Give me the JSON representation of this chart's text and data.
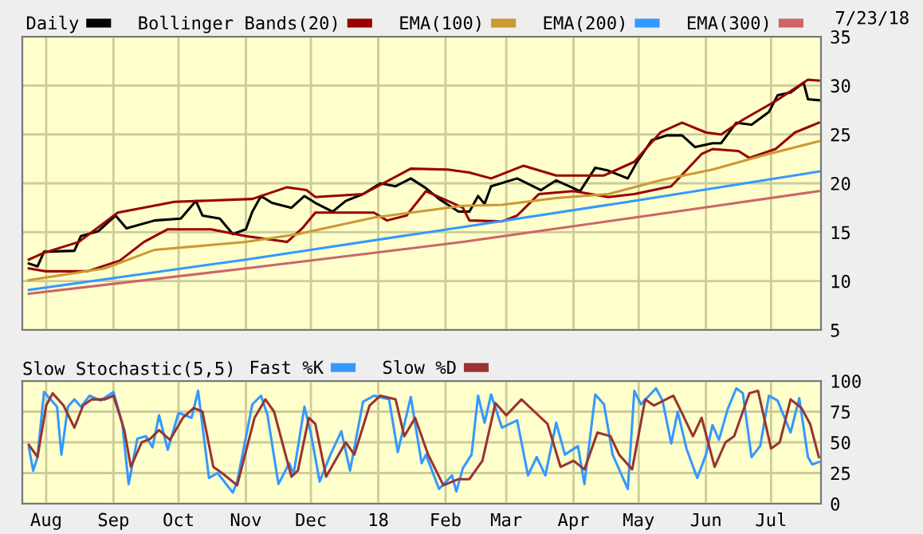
{
  "chart_data": [
    {
      "type": "line",
      "legend": "top",
      "grid": true,
      "tick_labels": "y",
      "annotations": [
        "7/23/18"
      ],
      "xlim": [
        "2017-07-21",
        "2018-07-24"
      ],
      "ylim": [
        5,
        35
      ],
      "yticks": [
        5,
        10,
        15,
        20,
        25,
        30,
        35
      ],
      "xticks": [
        {
          "value": "2017-08-01",
          "label": null
        },
        {
          "value": "2017-09-01",
          "label": null
        },
        {
          "value": "2017-10-01",
          "label": null
        },
        {
          "value": "2017-11-01",
          "label": null
        },
        {
          "value": "2017-12-01",
          "label": null
        },
        {
          "value": "2018-01-01",
          "label": null
        },
        {
          "value": "2018-02-01",
          "label": null
        },
        {
          "value": "2018-03-01",
          "label": null
        },
        {
          "value": "2018-04-01",
          "label": null
        },
        {
          "value": "2018-05-01",
          "label": null
        },
        {
          "value": "2018-06-01",
          "label": null
        },
        {
          "value": "2018-07-01",
          "label": null
        }
      ],
      "series": [
        {
          "name": "Daily",
          "color": "#000000",
          "x": [
            "2017-07-24",
            "2017-07-28",
            "2017-07-31",
            "2017-08-14",
            "2017-08-17",
            "2017-08-25",
            "2017-09-02",
            "2017-09-07",
            "2017-09-20",
            "2017-10-02",
            "2017-10-09",
            "2017-10-12",
            "2017-10-20",
            "2017-10-26",
            "2017-11-01",
            "2017-11-04",
            "2017-11-08",
            "2017-11-13",
            "2017-11-22",
            "2017-11-28",
            "2017-12-03",
            "2017-12-11",
            "2017-12-17",
            "2017-12-25",
            "2018-01-02",
            "2018-01-09",
            "2018-01-16",
            "2018-01-23",
            "2018-01-29",
            "2018-02-07",
            "2018-02-12",
            "2018-02-16",
            "2018-02-19",
            "2018-02-22",
            "2018-03-06",
            "2018-03-17",
            "2018-03-24",
            "2018-04-04",
            "2018-04-11",
            "2018-04-17",
            "2018-04-26",
            "2018-04-30",
            "2018-05-07",
            "2018-05-14",
            "2018-05-21",
            "2018-05-27",
            "2018-06-04",
            "2018-06-08",
            "2018-06-15",
            "2018-06-22",
            "2018-06-30",
            "2018-07-04",
            "2018-07-10",
            "2018-07-16",
            "2018-07-18",
            "2018-07-23"
          ],
          "values": [
            11.8,
            11.5,
            13.0,
            13.1,
            14.6,
            15.1,
            16.7,
            15.4,
            16.2,
            16.4,
            18.2,
            16.7,
            16.4,
            14.8,
            15.3,
            17.1,
            18.7,
            18.0,
            17.5,
            18.7,
            18.0,
            17.1,
            18.2,
            18.9,
            20.0,
            19.7,
            20.5,
            19.5,
            18.4,
            17.1,
            17.1,
            18.7,
            17.9,
            19.7,
            20.5,
            19.3,
            20.3,
            19.2,
            21.6,
            21.3,
            20.5,
            22.1,
            24.4,
            24.9,
            24.9,
            23.7,
            24.1,
            24.1,
            26.2,
            26.0,
            27.3,
            29.0,
            29.3,
            30.3,
            28.6,
            28.5
          ]
        },
        {
          "name": "Bollinger Bands(20)",
          "color": "#990000",
          "x": [
            "2017-07-24",
            "2017-07-31",
            "2017-08-16",
            "2017-09-03",
            "2017-09-29",
            "2017-11-04",
            "2017-11-20",
            "2017-11-29",
            "2017-12-03",
            "2017-12-25",
            "2018-01-16",
            "2018-02-02",
            "2018-02-12",
            "2018-02-22",
            "2018-03-09",
            "2018-03-24",
            "2018-04-15",
            "2018-04-29",
            "2018-05-11",
            "2018-05-21",
            "2018-06-01",
            "2018-06-08",
            "2018-06-18",
            "2018-07-03",
            "2018-07-18",
            "2018-07-23"
          ],
          "values": [
            12.2,
            12.9,
            14.0,
            17.0,
            18.1,
            18.4,
            19.6,
            19.3,
            18.6,
            18.9,
            21.5,
            21.4,
            21.1,
            20.5,
            21.8,
            20.8,
            20.8,
            22.2,
            25.2,
            26.2,
            25.2,
            25.0,
            26.5,
            28.4,
            30.6,
            30.5
          ]
        },
        {
          "color": "#990000",
          "x": [
            "2017-07-24",
            "2017-08-01",
            "2017-08-20",
            "2017-09-04",
            "2017-09-15",
            "2017-09-26",
            "2017-10-16",
            "2017-11-01",
            "2017-11-20",
            "2017-11-27",
            "2017-12-03",
            "2017-12-30",
            "2018-01-05",
            "2018-01-14",
            "2018-01-23",
            "2018-02-09",
            "2018-02-12",
            "2018-02-27",
            "2018-03-06",
            "2018-03-16",
            "2018-04-01",
            "2018-04-17",
            "2018-04-29",
            "2018-05-16",
            "2018-05-30",
            "2018-06-04",
            "2018-06-16",
            "2018-06-21",
            "2018-07-03",
            "2018-07-12",
            "2018-07-23"
          ],
          "values": [
            11.3,
            11.0,
            11.0,
            12.1,
            14.0,
            15.3,
            15.3,
            14.6,
            14.0,
            15.4,
            17.0,
            17.0,
            16.2,
            16.7,
            19.2,
            17.5,
            16.2,
            16.1,
            16.7,
            18.9,
            19.2,
            18.6,
            18.9,
            19.7,
            23.0,
            23.5,
            23.3,
            22.6,
            23.5,
            25.2,
            26.2
          ]
        },
        {
          "name": "EMA(100)",
          "color": "#cc9933",
          "x": [
            "2017-07-24",
            "2017-08-28",
            "2017-09-20",
            "2017-11-01",
            "2017-11-25",
            "2017-12-30",
            "2018-02-09",
            "2018-02-27",
            "2018-03-24",
            "2018-04-17",
            "2018-05-11",
            "2018-06-04",
            "2018-06-28",
            "2018-07-23"
          ],
          "values": [
            10.1,
            11.3,
            13.2,
            14.0,
            14.8,
            16.5,
            17.7,
            17.8,
            18.5,
            18.9,
            20.3,
            21.4,
            22.9,
            24.3
          ]
        },
        {
          "name": "EMA(200)",
          "color": "#3399ff",
          "x": [
            "2017-07-24",
            "2017-11-01",
            "2018-02-02",
            "2018-04-29",
            "2018-07-23"
          ],
          "values": [
            9.1,
            12.2,
            15.3,
            18.2,
            21.2
          ]
        },
        {
          "name": "EMA(300)",
          "color": "#cc6666",
          "x": [
            "2017-07-24",
            "2017-11-01",
            "2018-02-09",
            "2018-04-29",
            "2018-07-23"
          ],
          "values": [
            8.7,
            11.3,
            14.0,
            16.5,
            19.2
          ]
        }
      ]
    },
    {
      "type": "line",
      "title": "Slow Stochastic(5,5)",
      "legend": "top",
      "grid": true,
      "xlim": [
        "2017-07-21",
        "2018-07-24"
      ],
      "ylim": [
        0,
        100
      ],
      "yticks": [
        0,
        25,
        50,
        75,
        100
      ],
      "xticks": [
        {
          "value": "2017-08-01",
          "label": "Aug"
        },
        {
          "value": "2017-09-01",
          "label": "Sep"
        },
        {
          "value": "2017-10-01",
          "label": "Oct"
        },
        {
          "value": "2017-11-01",
          "label": "Nov"
        },
        {
          "value": "2017-12-01",
          "label": "Dec"
        },
        {
          "value": "2018-01-01",
          "label": "18"
        },
        {
          "value": "2018-02-01",
          "label": "Feb"
        },
        {
          "value": "2018-03-01",
          "label": "Mar"
        },
        {
          "value": "2018-04-01",
          "label": "Apr"
        },
        {
          "value": "2018-05-01",
          "label": "May"
        },
        {
          "value": "2018-06-01",
          "label": "Jun"
        },
        {
          "value": "2018-07-01",
          "label": "Jul"
        }
      ],
      "series": [
        {
          "name": "Fast %K",
          "color": "#3399ff",
          "x": [
            "2017-07-24",
            "2017-07-26",
            "2017-07-28",
            "2017-07-31",
            "2017-08-04",
            "2017-08-06",
            "2017-08-08",
            "2017-08-11",
            "2017-08-14",
            "2017-08-17",
            "2017-08-21",
            "2017-08-26",
            "2017-09-01",
            "2017-09-05",
            "2017-09-08",
            "2017-09-12",
            "2017-09-16",
            "2017-09-19",
            "2017-09-22",
            "2017-09-26",
            "2017-10-01",
            "2017-10-07",
            "2017-10-10",
            "2017-10-15",
            "2017-10-19",
            "2017-10-26",
            "2017-10-28",
            "2017-11-04",
            "2017-11-08",
            "2017-11-11",
            "2017-11-16",
            "2017-11-21",
            "2017-11-23",
            "2017-11-28",
            "2017-12-01",
            "2017-12-05",
            "2017-12-10",
            "2017-12-15",
            "2017-12-19",
            "2017-12-25",
            "2017-12-30",
            "2018-01-06",
            "2018-01-10",
            "2018-01-16",
            "2018-01-21",
            "2018-01-23",
            "2018-01-29",
            "2018-02-04",
            "2018-02-06",
            "2018-02-09",
            "2018-02-13",
            "2018-02-16",
            "2018-02-19",
            "2018-02-22",
            "2018-02-27",
            "2018-03-06",
            "2018-03-11",
            "2018-03-15",
            "2018-03-19",
            "2018-03-24",
            "2018-03-28",
            "2018-04-03",
            "2018-04-06",
            "2018-04-11",
            "2018-04-15",
            "2018-04-19",
            "2018-04-26",
            "2018-04-29",
            "2018-05-02",
            "2018-05-09",
            "2018-05-12",
            "2018-05-16",
            "2018-05-19",
            "2018-05-23",
            "2018-05-28",
            "2018-06-01",
            "2018-06-04",
            "2018-06-07",
            "2018-06-11",
            "2018-06-15",
            "2018-06-18",
            "2018-06-22",
            "2018-06-26",
            "2018-06-30",
            "2018-07-04",
            "2018-07-10",
            "2018-07-14",
            "2018-07-18",
            "2018-07-20",
            "2018-07-23"
          ],
          "values": [
            46,
            27,
            38,
            91,
            83,
            79,
            40,
            79,
            85,
            79,
            88,
            84,
            91,
            66,
            16,
            53,
            55,
            46,
            72,
            44,
            74,
            70,
            92,
            21,
            25,
            9,
            18,
            81,
            88,
            72,
            16,
            33,
            24,
            79,
            57,
            18,
            40,
            59,
            27,
            83,
            88,
            85,
            42,
            87,
            33,
            40,
            12,
            23,
            10,
            29,
            40,
            88,
            66,
            89,
            62,
            68,
            23,
            38,
            23,
            66,
            40,
            47,
            16,
            89,
            81,
            40,
            12,
            92,
            81,
            94,
            84,
            49,
            75,
            45,
            21,
            40,
            64,
            52,
            77,
            94,
            90,
            38,
            47,
            88,
            84,
            58,
            86,
            38,
            32,
            34
          ]
        },
        {
          "name": "Slow %D",
          "color": "#993333",
          "x": [
            "2017-07-24",
            "2017-07-28",
            "2017-08-01",
            "2017-08-04",
            "2017-08-09",
            "2017-08-14",
            "2017-08-18",
            "2017-08-22",
            "2017-08-28",
            "2017-09-01",
            "2017-09-06",
            "2017-09-09",
            "2017-09-14",
            "2017-09-18",
            "2017-09-22",
            "2017-09-27",
            "2017-10-03",
            "2017-10-08",
            "2017-10-12",
            "2017-10-17",
            "2017-10-21",
            "2017-10-28",
            "2017-11-05",
            "2017-11-10",
            "2017-11-14",
            "2017-11-22",
            "2017-11-25",
            "2017-11-30",
            "2017-12-03",
            "2017-12-08",
            "2017-12-17",
            "2017-12-21",
            "2017-12-28",
            "2018-01-02",
            "2018-01-09",
            "2018-01-13",
            "2018-01-18",
            "2018-01-24",
            "2018-01-31",
            "2018-02-07",
            "2018-02-12",
            "2018-02-18",
            "2018-02-24",
            "2018-03-01",
            "2018-03-08",
            "2018-03-14",
            "2018-03-20",
            "2018-03-26",
            "2018-04-01",
            "2018-04-06",
            "2018-04-12",
            "2018-04-18",
            "2018-04-22",
            "2018-04-28",
            "2018-05-04",
            "2018-05-08",
            "2018-05-17",
            "2018-05-22",
            "2018-05-26",
            "2018-05-30",
            "2018-06-05",
            "2018-06-10",
            "2018-06-14",
            "2018-06-21",
            "2018-06-25",
            "2018-07-01",
            "2018-07-05",
            "2018-07-10",
            "2018-07-15",
            "2018-07-19",
            "2018-07-23"
          ],
          "values": [
            48,
            38,
            80,
            90,
            80,
            62,
            80,
            85,
            85,
            88,
            60,
            30,
            50,
            53,
            60,
            52,
            70,
            78,
            75,
            30,
            25,
            15,
            70,
            85,
            75,
            22,
            27,
            70,
            65,
            22,
            50,
            40,
            80,
            88,
            85,
            55,
            70,
            40,
            15,
            20,
            20,
            35,
            82,
            72,
            85,
            75,
            65,
            30,
            35,
            28,
            58,
            55,
            40,
            28,
            85,
            80,
            88,
            70,
            55,
            70,
            30,
            50,
            55,
            90,
            92,
            45,
            50,
            85,
            78,
            65,
            38
          ]
        }
      ]
    }
  ]
}
